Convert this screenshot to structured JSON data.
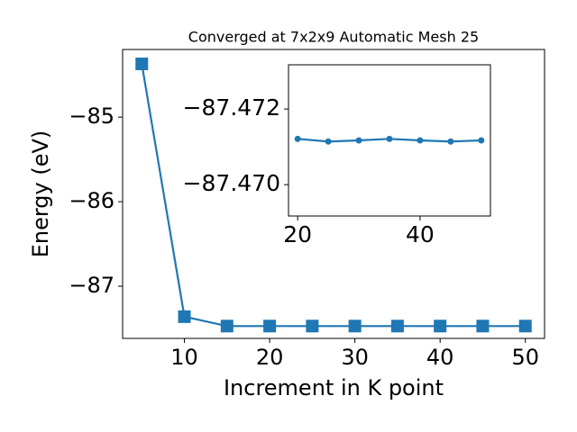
{
  "chart_data": [
    {
      "type": "line",
      "title": "Converged at 7x2x9 Automatic Mesh 25",
      "x_label": "Increment in K point",
      "y_label": "Energy (eV)",
      "x": [
        5,
        10,
        15,
        20,
        25,
        30,
        35,
        40,
        45,
        50
      ],
      "values": [
        -84.37,
        -87.36,
        -87.47121,
        -87.47121,
        -87.47114,
        -87.47117,
        -87.47121,
        -87.47117,
        -87.47114,
        -87.47117
      ],
      "color": "#1f77b4",
      "marker": "square",
      "xlim": [
        2.75,
        52.25
      ],
      "xticks": [
        10,
        20,
        30,
        40,
        50
      ],
      "ylim": [
        -87.617,
        -84.2
      ],
      "yticks": [
        {
          "value": -87,
          "label": "−87"
        },
        {
          "value": -86,
          "label": "−86"
        },
        {
          "value": -85,
          "label": "−85"
        }
      ]
    },
    {
      "type": "line",
      "x": [
        20,
        25,
        30,
        35,
        40,
        45,
        50
      ],
      "values": [
        -87.47121,
        -87.47114,
        -87.47117,
        -87.47121,
        -87.47117,
        -87.47114,
        -87.47117
      ],
      "color": "#1f77b4",
      "marker": "circle",
      "xlim": [
        18.5,
        51.5
      ],
      "xticks": [
        20,
        40
      ],
      "ylim": [
        -87.46917,
        -87.47317
      ],
      "yticks": [
        {
          "value": -87.47,
          "label": "−87.470"
        },
        {
          "value": -87.472,
          "label": "−87.472"
        }
      ]
    }
  ]
}
